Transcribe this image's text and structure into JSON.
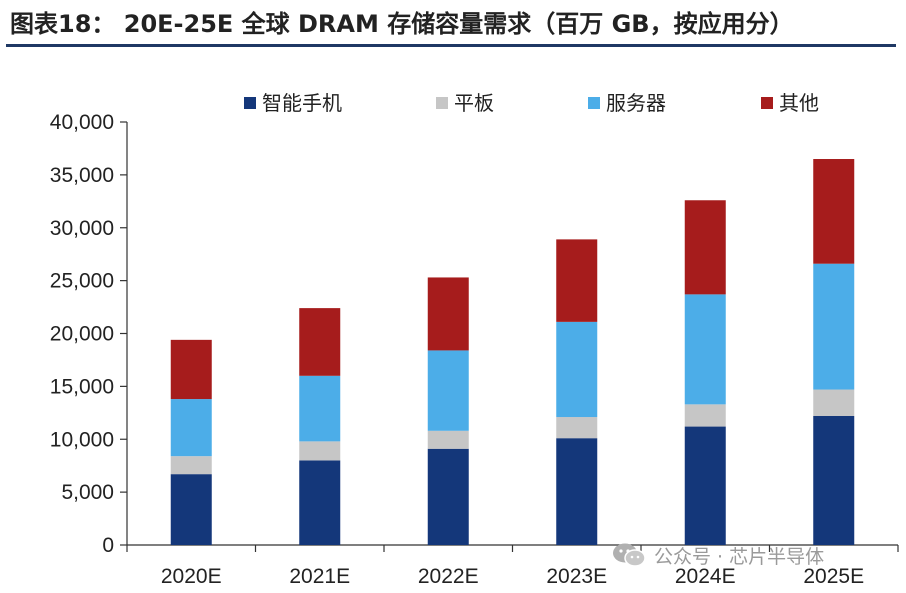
{
  "title": "图表18： 20E-25E 全球 DRAM 存储容量需求（百万 GB，按应用分）",
  "watermark": "公众号 · 芯片半导体",
  "chart_data": {
    "type": "bar",
    "stacked": true,
    "categories": [
      "2020E",
      "2021E",
      "2022E",
      "2023E",
      "2024E",
      "2025E"
    ],
    "series": [
      {
        "name": "智能手机",
        "color": "#14377a",
        "values": [
          6700,
          8000,
          9100,
          10100,
          11200,
          12200
        ]
      },
      {
        "name": "平板",
        "color": "#c6c6c6",
        "values": [
          1700,
          1800,
          1700,
          2000,
          2100,
          2500
        ]
      },
      {
        "name": "服务器",
        "color": "#4cade8",
        "values": [
          5400,
          6200,
          7600,
          9000,
          10400,
          11900
        ]
      },
      {
        "name": "其他",
        "color": "#a61c1c",
        "values": [
          5600,
          6400,
          6900,
          7800,
          8900,
          9900
        ]
      }
    ],
    "ylim": [
      0,
      40000
    ],
    "yticks": [
      0,
      5000,
      10000,
      15000,
      20000,
      25000,
      30000,
      35000,
      40000
    ],
    "ytick_labels": [
      "0",
      "5,000",
      "10,000",
      "15,000",
      "20,000",
      "25,000",
      "30,000",
      "35,000",
      "40,000"
    ],
    "grid": false,
    "legend_position": "top"
  }
}
